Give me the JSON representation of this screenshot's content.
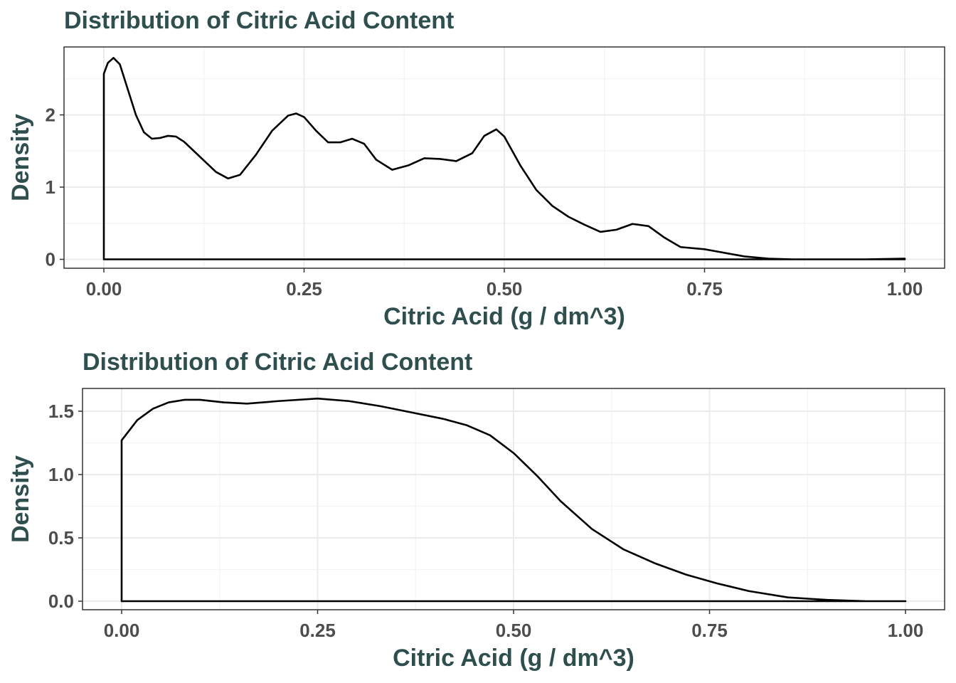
{
  "chart_data": [
    {
      "type": "line",
      "subtype": "density",
      "title": "Distribution of Citric Acid Content",
      "xlabel": "Citric Acid (g / dm^3)",
      "ylabel": "Density",
      "xlim": [
        0,
        1
      ],
      "ylim": [
        0,
        2.8
      ],
      "grid": true,
      "x_ticks": [
        0,
        0.25,
        0.5,
        0.75,
        1.0
      ],
      "x_tick_labels": [
        "0.00",
        "0.25",
        "0.50",
        "0.75",
        "1.00"
      ],
      "y_ticks": [
        0,
        1,
        2
      ],
      "y_tick_labels": [
        "0",
        "1",
        "2"
      ],
      "series": [
        {
          "x": [
            0,
            0,
            0.005,
            0.012,
            0.02,
            0.03,
            0.04,
            0.05,
            0.06,
            0.07,
            0.08,
            0.09,
            0.1,
            0.12,
            0.14,
            0.155,
            0.17,
            0.19,
            0.21,
            0.23,
            0.24,
            0.25,
            0.265,
            0.28,
            0.295,
            0.31,
            0.325,
            0.34,
            0.36,
            0.38,
            0.4,
            0.42,
            0.44,
            0.46,
            0.475,
            0.49,
            0.5,
            0.52,
            0.54,
            0.56,
            0.58,
            0.6,
            0.62,
            0.64,
            0.66,
            0.68,
            0.7,
            0.72,
            0.75,
            0.77,
            0.8,
            0.83,
            0.86,
            0.9,
            0.95,
            1.0,
            1.0
          ],
          "y": [
            0,
            2.57,
            2.72,
            2.79,
            2.7,
            2.35,
            2.0,
            1.76,
            1.67,
            1.68,
            1.71,
            1.7,
            1.63,
            1.42,
            1.21,
            1.12,
            1.17,
            1.45,
            1.78,
            1.99,
            2.02,
            1.97,
            1.78,
            1.62,
            1.62,
            1.67,
            1.6,
            1.38,
            1.24,
            1.3,
            1.4,
            1.39,
            1.36,
            1.47,
            1.71,
            1.8,
            1.7,
            1.3,
            0.96,
            0.74,
            0.59,
            0.48,
            0.38,
            0.41,
            0.49,
            0.46,
            0.3,
            0.17,
            0.14,
            0.1,
            0.04,
            0.01,
            0.0,
            0.0,
            0.0,
            0.01,
            0
          ],
          "closed_baseline": true
        }
      ]
    },
    {
      "type": "line",
      "subtype": "density",
      "title": "Distribution of Citric Acid Content",
      "xlabel": "Citric Acid (g / dm^3)",
      "ylabel": "Density",
      "xlim": [
        0,
        1
      ],
      "ylim": [
        0,
        1.6
      ],
      "grid": true,
      "x_ticks": [
        0,
        0.25,
        0.5,
        0.75,
        1.0
      ],
      "x_tick_labels": [
        "0.00",
        "0.25",
        "0.50",
        "0.75",
        "1.00"
      ],
      "y_ticks": [
        0,
        0.5,
        1.0,
        1.5
      ],
      "y_tick_labels": [
        "0.0",
        "0.5",
        "1.0",
        "1.5"
      ],
      "series": [
        {
          "x": [
            0,
            0,
            0.02,
            0.04,
            0.06,
            0.08,
            0.1,
            0.13,
            0.16,
            0.2,
            0.25,
            0.29,
            0.33,
            0.37,
            0.41,
            0.44,
            0.47,
            0.5,
            0.53,
            0.56,
            0.6,
            0.64,
            0.68,
            0.72,
            0.76,
            0.8,
            0.85,
            0.9,
            0.95,
            1.0,
            1.0
          ],
          "y": [
            0,
            1.27,
            1.43,
            1.52,
            1.57,
            1.59,
            1.59,
            1.57,
            1.56,
            1.58,
            1.6,
            1.58,
            1.54,
            1.49,
            1.44,
            1.39,
            1.31,
            1.17,
            0.99,
            0.79,
            0.57,
            0.41,
            0.3,
            0.21,
            0.14,
            0.08,
            0.03,
            0.01,
            0.0,
            0.0,
            0
          ],
          "closed_baseline": true
        }
      ]
    }
  ]
}
